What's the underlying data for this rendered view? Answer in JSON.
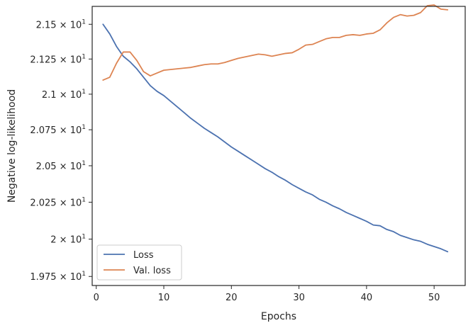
{
  "chart_data": {
    "type": "line",
    "xlabel": "Epochs",
    "ylabel": "Negative log-likelihood",
    "xlim": [
      -0.6,
      54.6
    ],
    "ylim": [
      19.69,
      21.63
    ],
    "x_scale": "linear",
    "y_scale": "log",
    "grid": false,
    "legend_position": "lower-left",
    "x_ticks": [
      {
        "value": 0,
        "label": "0"
      },
      {
        "value": 10,
        "label": "10"
      },
      {
        "value": 20,
        "label": "20"
      },
      {
        "value": 30,
        "label": "30"
      },
      {
        "value": 40,
        "label": "40"
      },
      {
        "value": 50,
        "label": "50"
      }
    ],
    "y_ticks": [
      {
        "value": 19.75,
        "mantissa": "1.975",
        "label": "1.975 × 10^1"
      },
      {
        "value": 20.0,
        "mantissa": "2",
        "label": "2 × 10^1"
      },
      {
        "value": 20.25,
        "mantissa": "2.025",
        "label": "2.025 × 10^1"
      },
      {
        "value": 20.5,
        "mantissa": "2.05",
        "label": "2.05 × 10^1"
      },
      {
        "value": 20.75,
        "mantissa": "2.075",
        "label": "2.075 × 10^1"
      },
      {
        "value": 21.0,
        "mantissa": "2.1",
        "label": "2.1 × 10^1"
      },
      {
        "value": 21.25,
        "mantissa": "2.125",
        "label": "2.125 × 10^1"
      },
      {
        "value": 21.5,
        "mantissa": "2.15",
        "label": "2.15 × 10^1"
      }
    ],
    "y_tick_base": "10",
    "y_tick_exponent": "1",
    "y_tick_times": "×",
    "x": [
      1,
      2,
      3,
      4,
      5,
      6,
      7,
      8,
      9,
      10,
      11,
      12,
      13,
      14,
      15,
      16,
      17,
      18,
      19,
      20,
      21,
      22,
      23,
      24,
      25,
      26,
      27,
      28,
      29,
      30,
      31,
      32,
      33,
      34,
      35,
      36,
      37,
      38,
      39,
      40,
      41,
      42,
      43,
      44,
      45,
      46,
      47,
      48,
      49,
      50,
      51,
      52
    ],
    "series": [
      {
        "name": "Loss",
        "color": "#4c72b0",
        "values": [
          21.5,
          21.43,
          21.34,
          21.27,
          21.23,
          21.18,
          21.12,
          21.06,
          21.02,
          20.99,
          20.95,
          20.91,
          20.87,
          20.83,
          20.795,
          20.76,
          20.73,
          20.7,
          20.665,
          20.63,
          20.6,
          20.57,
          20.54,
          20.51,
          20.48,
          20.455,
          20.425,
          20.4,
          20.37,
          20.345,
          20.32,
          20.3,
          20.27,
          20.25,
          20.225,
          20.205,
          20.18,
          20.16,
          20.14,
          20.12,
          20.095,
          20.09,
          20.065,
          20.05,
          20.025,
          20.01,
          19.995,
          19.985,
          19.965,
          19.95,
          19.935,
          19.915
        ]
      },
      {
        "name": "Val. loss",
        "color": "#dd8452",
        "values": [
          21.1,
          21.12,
          21.22,
          21.3,
          21.3,
          21.24,
          21.16,
          21.13,
          21.15,
          21.17,
          21.175,
          21.18,
          21.185,
          21.19,
          21.2,
          21.21,
          21.215,
          21.215,
          21.225,
          21.24,
          21.255,
          21.265,
          21.275,
          21.285,
          21.28,
          21.27,
          21.28,
          21.29,
          21.295,
          21.32,
          21.35,
          21.355,
          21.375,
          21.395,
          21.405,
          21.405,
          21.42,
          21.425,
          21.42,
          21.43,
          21.435,
          21.46,
          21.51,
          21.55,
          21.57,
          21.56,
          21.565,
          21.585,
          21.635,
          21.64,
          21.61,
          21.605
        ]
      }
    ]
  }
}
